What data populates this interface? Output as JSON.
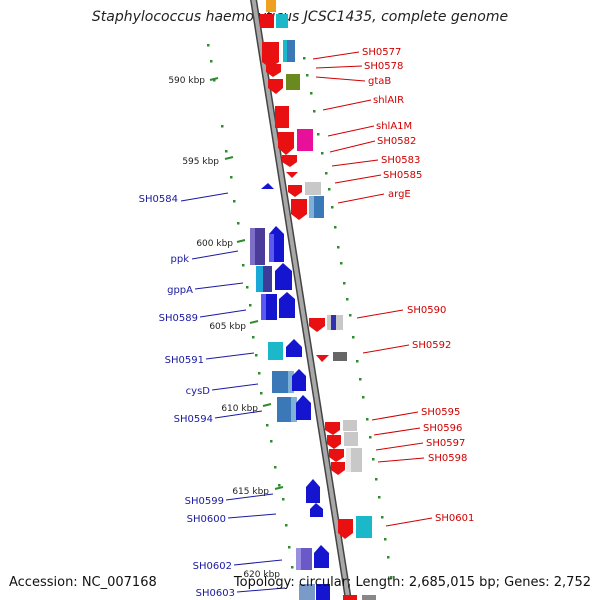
{
  "title": "Staphylococcus haemolyticus JCSC1435, complete genome",
  "footer": {
    "accession": "Accession: NC_007168",
    "stats": "Topology: circular; Length: 2,685,015 bp; Genes: 2,752"
  },
  "colors": {
    "backbone": "#8a8a8a",
    "ruler": "#2e8b2e",
    "forward_label": "#1a1aa0",
    "reverse_label": "#d00000"
  },
  "ruler_ticks": [
    "590 kbp",
    "595 kbp",
    "600 kbp",
    "605 kbp",
    "610 kbp",
    "615 kbp",
    "620 kbp"
  ],
  "forward_labels": [
    "SH0584",
    "ppk",
    "gppA",
    "SH0589",
    "SH0591",
    "cysD",
    "SH0594",
    "SH0599",
    "SH0600",
    "SH0602",
    "SH0603"
  ],
  "reverse_labels": [
    "SH0577",
    "SH0578",
    "gtaB",
    "shlAIR",
    "shlA1M",
    "SH0582",
    "SH0583",
    "SH0585",
    "argE",
    "SH0590",
    "SH0592",
    "SH0595",
    "SH0596",
    "SH0597",
    "SH0598",
    "SH0601"
  ]
}
